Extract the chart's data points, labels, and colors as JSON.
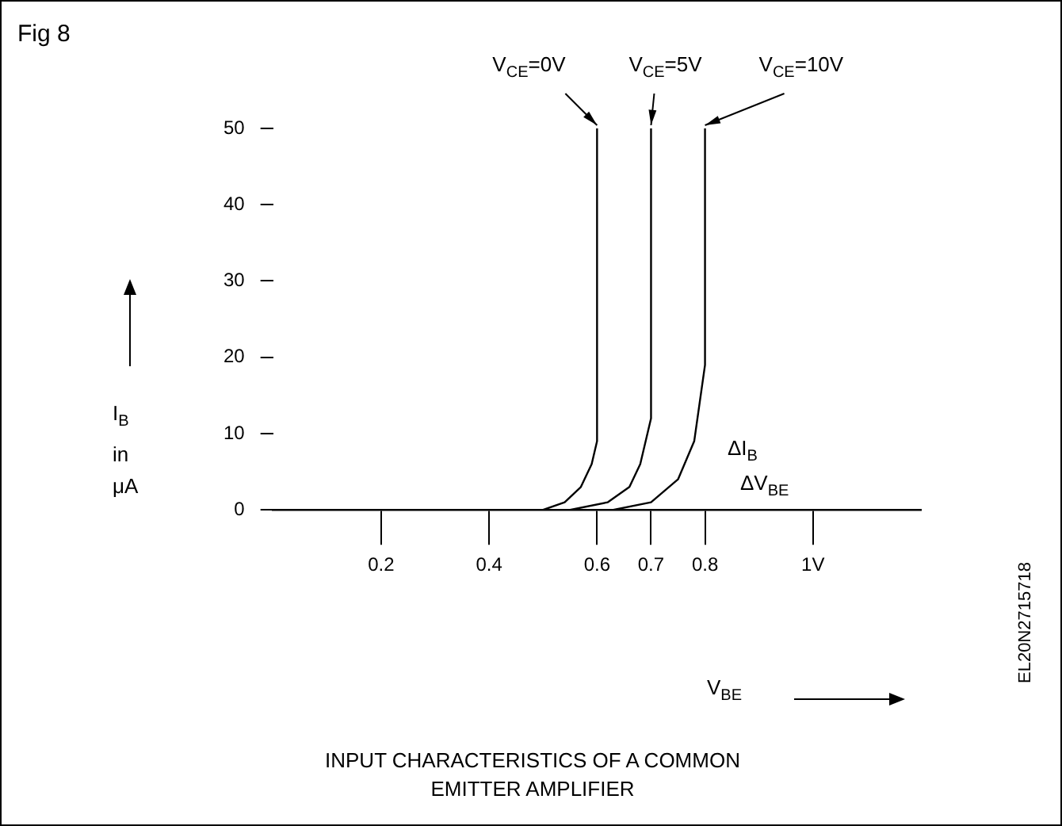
{
  "chart_data": {
    "type": "line",
    "title": "INPUT CHARACTERISTICS OF A COMMON EMITTER AMPLIFIER",
    "xlabel": "V$_{BE}$",
    "ylabel": "I$_{B}$ in μA",
    "annotations": [
      "Fig 8",
      "EL20N2715718",
      "ΔI$_{B}$",
      "ΔV$_{BE}$"
    ],
    "series": [
      {
        "name": "V$_{CE}$=0V",
        "color": "#000000",
        "x": [
          0,
          0.5,
          0.54,
          0.57,
          0.59,
          0.6,
          0.6
        ],
        "values": [
          0,
          0,
          1,
          3,
          6,
          9,
          50
        ]
      },
      {
        "name": "V$_{CE}$=5V",
        "color": "#000000",
        "x": [
          0.55,
          0.62,
          0.66,
          0.68,
          0.7,
          0.7
        ],
        "values": [
          0,
          1,
          3,
          6,
          12,
          50
        ]
      },
      {
        "name": "V$_{CE}$=10V",
        "color": "#000000",
        "x": [
          0.63,
          0.7,
          0.75,
          0.78,
          0.8,
          0.8
        ],
        "values": [
          0,
          1,
          4,
          9,
          19,
          50
        ]
      }
    ],
    "xlim": [
      0,
      1.2
    ],
    "ylim": [
      0,
      50
    ],
    "xticks": [
      0.2,
      0.4,
      0.6,
      0.7,
      0.8,
      {
        "value": 1,
        "label": "1V"
      }
    ],
    "yticks": [
      0,
      10,
      20,
      30,
      40,
      50
    ],
    "grid": false,
    "legend": false
  }
}
